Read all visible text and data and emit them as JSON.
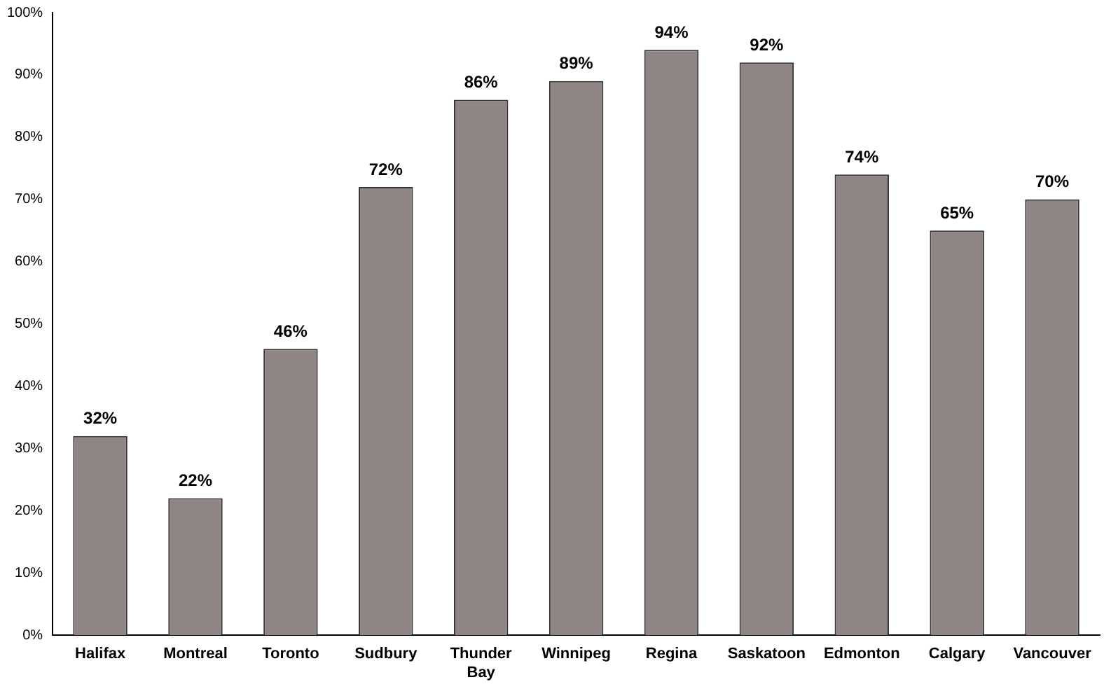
{
  "chart_data": {
    "type": "bar",
    "categories": [
      "Halifax",
      "Montreal",
      "Toronto",
      "Sudbury",
      "Thunder Bay",
      "Winnipeg",
      "Regina",
      "Saskatoon",
      "Edmonton",
      "Calgary",
      "Vancouver"
    ],
    "values": [
      32,
      22,
      46,
      72,
      86,
      89,
      94,
      92,
      74,
      65,
      70
    ],
    "value_labels": [
      "32%",
      "22%",
      "46%",
      "72%",
      "86%",
      "89%",
      "94%",
      "92%",
      "74%",
      "65%",
      "70%"
    ],
    "color": "#8f8585",
    "ylim": [
      0,
      100
    ],
    "yticks": [
      {
        "value": 0,
        "label": "0%"
      },
      {
        "value": 10,
        "label": "10%"
      },
      {
        "value": 20,
        "label": "20%"
      },
      {
        "value": 30,
        "label": "30%"
      },
      {
        "value": 40,
        "label": "40%"
      },
      {
        "value": 50,
        "label": "50%"
      },
      {
        "value": 60,
        "label": "60%"
      },
      {
        "value": 70,
        "label": "70%"
      },
      {
        "value": 80,
        "label": "80%"
      },
      {
        "value": 90,
        "label": "90%"
      },
      {
        "value": 100,
        "label": "100%"
      }
    ],
    "grid": false,
    "legend": false
  }
}
